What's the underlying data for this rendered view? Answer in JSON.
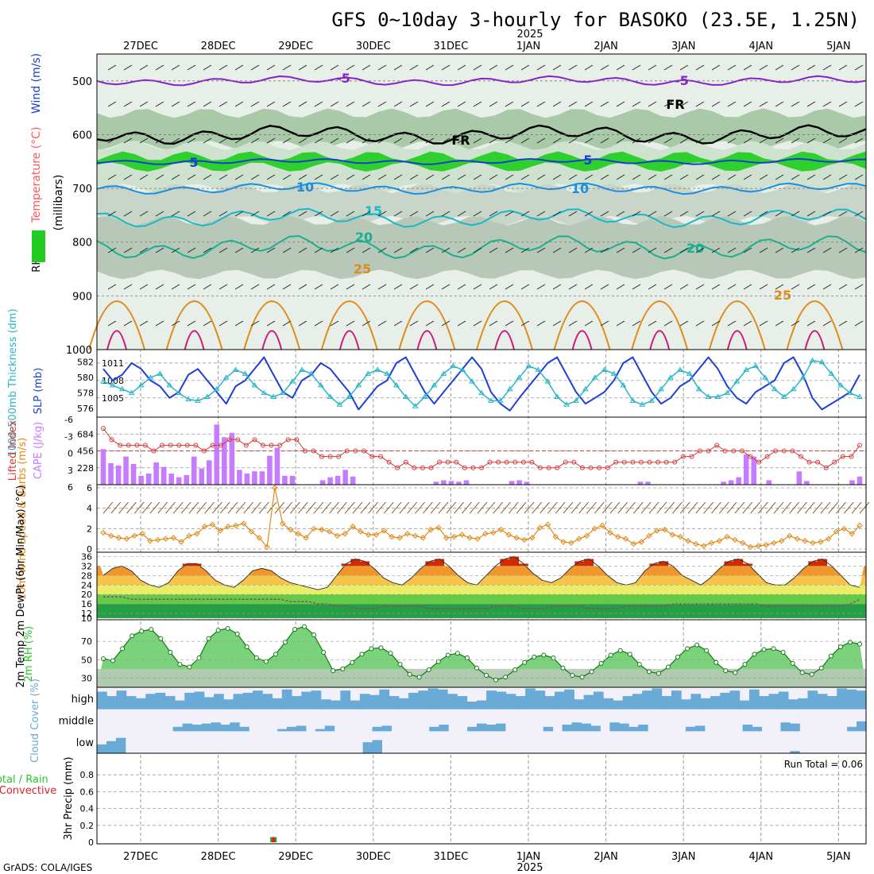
{
  "title": "GFS 0~10day 3-hourly for BASOKO (23.5E, 1.25N)",
  "year_label": "2025",
  "credit": "GrADS: COLA/IGES",
  "days": [
    "27DEC",
    "28DEC",
    "29DEC",
    "30DEC",
    "31DEC",
    "1JAN",
    "2JAN",
    "3JAN",
    "4JAN",
    "5JAN"
  ],
  "colors": {
    "slp": "#1f3fd6",
    "thickness": "#2ab5c8",
    "lifted": "#d93a3a",
    "cape": "#c77cff",
    "wind": "#e08a18",
    "temp_fill": "#f08a10",
    "temp_peak": "#d42a00",
    "rh_green": "#22cc22",
    "cloud": "#6aaad6",
    "cloud_clear": "#f2f0f8",
    "iso_purple": "#8a20c8",
    "iso_blue": "#1a3ecc",
    "iso_sky": "#1a8ee0",
    "iso_teal": "#18b8c8",
    "iso_green": "#18b090",
    "iso_orange": "#e08a18",
    "iso_magenta": "#d01878"
  },
  "chart_data": [
    {
      "type": "heatmap",
      "name": "upper-air cross section",
      "ylabel_parts": [
        "RH (%)",
        "Temperature (°C)",
        "Wind (m/s)",
        "(millibars)"
      ],
      "y_ticks": [
        500,
        600,
        700,
        800,
        900,
        1000
      ],
      "ylim": [
        450,
        1000
      ],
      "isotherm_labels": [
        "-5",
        "FR",
        "5",
        "10",
        "15",
        "20",
        "25"
      ],
      "isotherms": [
        {
          "label": "-5",
          "level": 500,
          "amp": 10,
          "color_key": "iso_purple"
        },
        {
          "label": "FR",
          "level": 600,
          "amp": 20,
          "color_key": "iso_black"
        },
        {
          "label": "5",
          "level": 650,
          "amp": 6,
          "color_key": "iso_blue"
        },
        {
          "label": "10",
          "level": 700,
          "amp": 12,
          "color_key": "iso_sky"
        },
        {
          "label": "15",
          "level": 755,
          "amp": 20,
          "color_key": "iso_teal"
        },
        {
          "label": "20",
          "level": 810,
          "amp": 25,
          "color_key": "iso_green"
        }
      ]
    },
    {
      "type": "line",
      "name": "thickness and slp",
      "ylabel_left": "1000-500mb Thickness (dm)",
      "ylabel_right": "SLP (mb)",
      "thickness_ticks": [
        576,
        578,
        580,
        582
      ],
      "slp_ticks": [
        1005,
        1008,
        1011
      ],
      "slp_ylim": [
        1002.5,
        1012.5
      ],
      "slp": [
        1010,
        1008,
        1009,
        1011,
        1010,
        1008,
        1007,
        1005,
        1006,
        1009,
        1010,
        1008,
        1006,
        1004,
        1007,
        1008,
        1010,
        1012,
        1009,
        1006,
        1005,
        1008,
        1009,
        1011,
        1010,
        1008,
        1006,
        1003,
        1005,
        1007,
        1008,
        1011,
        1012,
        1009,
        1006,
        1004,
        1006,
        1008,
        1010,
        1012,
        1010,
        1006,
        1004,
        1002.8,
        1005,
        1007,
        1009,
        1011,
        1012,
        1009,
        1006,
        1004,
        1005,
        1006,
        1008,
        1011,
        1012,
        1009,
        1006,
        1004,
        1005,
        1007,
        1008,
        1010,
        1012,
        1010,
        1007,
        1005,
        1004,
        1006,
        1007,
        1008,
        1011,
        1012,
        1009,
        1005,
        1003,
        1004,
        1005,
        1006,
        1009
      ],
      "thickness": [
        579.5,
        579,
        578.5,
        578,
        579,
        580,
        580.5,
        579,
        578,
        577.2,
        577,
        577.5,
        578.5,
        580,
        581,
        580.5,
        579,
        578,
        577.5,
        578,
        579.5,
        581,
        580.5,
        579,
        577.5,
        576.5,
        577.5,
        579,
        580.5,
        581,
        580.5,
        579,
        577.5,
        576.3,
        577.5,
        579,
        580.5,
        581.5,
        581,
        579.5,
        578,
        577,
        577,
        578.5,
        580,
        581.5,
        581,
        579.5,
        577.5,
        576.5,
        577,
        578.5,
        580,
        581,
        580.5,
        579,
        577,
        576.5,
        577,
        578.5,
        580,
        581,
        580.5,
        578.5,
        577.5,
        577.5,
        578,
        579.5,
        581,
        581.5,
        580,
        578.5,
        577.5,
        578.5,
        580,
        582.2,
        582,
        580.5,
        579,
        578,
        577.5
      ]
    },
    {
      "type": "bar",
      "name": "cape and lifted index",
      "ylabel_left": "Lifted Index",
      "ylabel_right": "CAPE (J/kg)",
      "li_ticks": [
        "-6",
        "-3",
        "0",
        "3",
        "6"
      ],
      "cape_ticks": [
        684,
        456,
        228
      ],
      "cape_ylim": [
        0,
        912
      ],
      "cape": [
        480,
        290,
        260,
        380,
        280,
        120,
        150,
        300,
        240,
        150,
        100,
        130,
        380,
        220,
        330,
        812,
        640,
        700,
        200,
        150,
        180,
        180,
        390,
        500,
        120,
        120,
        0,
        0,
        0,
        60,
        100,
        120,
        200,
        110,
        0,
        0,
        0,
        0,
        0,
        0,
        0,
        0,
        0,
        0,
        40,
        60,
        50,
        40,
        60,
        0,
        0,
        0,
        0,
        0,
        50,
        60,
        40,
        0,
        0,
        0,
        0,
        0,
        0,
        0,
        0,
        0,
        0,
        0,
        0,
        0,
        0,
        40,
        40,
        0,
        0,
        0,
        0,
        0,
        0,
        0,
        0,
        0,
        40,
        60,
        100,
        410,
        380,
        0,
        60,
        0,
        0,
        0,
        180,
        50,
        0,
        0,
        0,
        0,
        0,
        60,
        110
      ],
      "lifted_index": [
        -4,
        -2,
        -1,
        -1,
        -1,
        -1,
        0,
        -1,
        -1,
        -1,
        -1,
        -1,
        0,
        -1,
        -1,
        -2,
        -2,
        -1,
        -2,
        -1,
        -1,
        -1,
        -2,
        -2,
        0,
        0,
        1,
        1,
        1,
        0,
        0,
        0,
        1,
        1,
        2,
        3,
        2,
        3,
        3,
        3,
        2,
        2,
        2,
        3,
        3,
        3,
        2,
        2,
        2,
        2,
        2,
        2,
        3,
        3,
        3,
        2,
        2,
        3,
        3,
        3,
        3,
        2,
        2,
        2,
        2,
        2,
        2,
        2,
        2,
        1,
        1,
        0,
        0,
        -1,
        0,
        0,
        0,
        1,
        2,
        1,
        0,
        0,
        0,
        1,
        2,
        2,
        3,
        2,
        1,
        1,
        -1
      ]
    },
    {
      "type": "line",
      "name": "10m wind",
      "ylabel": "10m Wind Speed & Barbs (m/s)",
      "y_ticks": [
        0,
        2,
        4,
        6
      ],
      "ylim": [
        0,
        6
      ],
      "values": [
        1.6,
        1.3,
        1.1,
        1.0,
        1.3,
        1.5,
        0.8,
        0.9,
        1.0,
        1.1,
        0.7,
        1.3,
        1.5,
        2.2,
        2.4,
        1.8,
        2.2,
        2.3,
        2.5,
        1.7,
        1.1,
        0.2,
        6.0,
        2.5,
        1.9,
        1.5,
        1.1,
        2.0,
        1.9,
        1.7,
        1.3,
        1.5,
        2.2,
        1.7,
        1.4,
        1.4,
        1.8,
        1.2,
        1.1,
        1.5,
        1.3,
        1.1,
        1.9,
        2.1,
        1.1,
        1.2,
        1.4,
        1.1,
        1.0,
        1.5,
        1.6,
        1.9,
        1.4,
        1.1,
        0.9,
        1.1,
        2.1,
        2.4,
        1.2,
        0.7,
        0.6,
        1.0,
        1.3,
        2.0,
        2.3,
        1.6,
        1.2,
        1.0,
        0.5,
        0.7,
        1.3,
        1.8,
        1.9,
        1.4,
        1.2,
        0.8,
        0.5,
        0.3,
        0.6,
        0.8,
        1.2,
        0.9,
        0.6,
        0.2,
        0.3,
        0.4,
        0.6,
        0.8,
        1.3,
        1.0,
        0.8,
        0.6,
        0.7,
        1.0,
        1.7,
        2.0,
        1.5,
        2.3
      ]
    },
    {
      "type": "area",
      "name": "2m temperature",
      "ylabel": "2m Temp 2m DewPt (6hr Min/Max) (°C)",
      "y_ticks": [
        10,
        12,
        16,
        20,
        24,
        28,
        32,
        36
      ],
      "ylim": [
        10,
        36.5
      ],
      "temp": [
        28,
        31,
        32,
        30,
        26,
        24,
        23,
        25,
        30,
        33,
        33,
        30,
        26,
        24,
        23,
        26,
        30,
        31,
        30,
        27,
        25,
        24,
        23,
        22,
        23,
        28,
        33,
        35,
        34,
        31,
        27,
        25,
        24,
        27,
        31,
        34,
        35,
        32,
        28,
        25,
        24,
        28,
        32,
        35,
        36,
        33,
        29,
        26,
        25,
        27,
        31,
        34,
        35,
        32,
        28,
        25,
        24,
        25,
        30,
        33,
        34,
        32,
        28,
        26,
        24,
        27,
        31,
        34,
        35,
        33,
        29,
        25,
        24,
        24,
        27,
        31,
        34,
        35,
        32,
        28,
        24,
        23
      ],
      "dewpoint": [
        19,
        19,
        19,
        18,
        18,
        18,
        18,
        18,
        18,
        18,
        18,
        18,
        18,
        18,
        18,
        18,
        18,
        18,
        18,
        18,
        17,
        17,
        17,
        16,
        16,
        15,
        15,
        14,
        14,
        14,
        15,
        15,
        15,
        15,
        15,
        14,
        14,
        14,
        14,
        14,
        14,
        14,
        15,
        15,
        15,
        14,
        14,
        14,
        15,
        15,
        15,
        15,
        14,
        14,
        14,
        14,
        15,
        15,
        15,
        15,
        15,
        16,
        16,
        16,
        16,
        16,
        16,
        16,
        16,
        16,
        16,
        15,
        15,
        15,
        15,
        15,
        15,
        15,
        15,
        15,
        16,
        18
      ]
    },
    {
      "type": "area",
      "name": "2m relative humidity",
      "ylabel": "2m RH (%)",
      "y_ticks": [
        30,
        50,
        70
      ],
      "ylim": [
        20,
        90
      ],
      "values": [
        51,
        49,
        62,
        76,
        81,
        83,
        73,
        58,
        45,
        42,
        52,
        73,
        82,
        84,
        78,
        64,
        52,
        48,
        56,
        69,
        83,
        86,
        77,
        58,
        38,
        40,
        47,
        56,
        62,
        63,
        57,
        45,
        34,
        31,
        39,
        48,
        55,
        57,
        52,
        41,
        33,
        28,
        31,
        39,
        47,
        53,
        55,
        52,
        41,
        33,
        31,
        37,
        46,
        55,
        60,
        56,
        45,
        37,
        35,
        42,
        53,
        62,
        66,
        60,
        47,
        38,
        36,
        45,
        56,
        61,
        62,
        58,
        46,
        36,
        34,
        41,
        54,
        64,
        69,
        67
      ]
    },
    {
      "type": "bar",
      "name": "cloud cover",
      "ylabel": "Cloud Cover (%)",
      "layers": [
        "high",
        "middle",
        "low"
      ],
      "high": [
        80,
        60,
        85,
        60,
        50,
        70,
        75,
        60,
        40,
        75,
        80,
        55,
        70,
        45,
        70,
        75,
        85,
        70,
        50,
        90,
        60,
        80,
        85,
        45,
        40,
        85,
        40,
        70,
        65,
        90,
        60,
        50,
        75,
        85,
        95,
        90,
        70,
        60,
        35,
        40,
        85,
        80,
        70,
        60,
        95,
        85,
        60,
        80,
        90,
        45,
        65,
        80,
        50,
        40,
        60,
        70,
        85,
        95,
        60,
        85,
        45,
        70,
        50,
        60,
        75,
        85,
        40,
        90,
        60,
        70,
        80,
        45,
        50,
        85,
        70,
        60,
        95,
        90,
        85
      ],
      "middle": [
        0,
        0,
        0,
        0,
        0,
        0,
        0,
        0,
        20,
        35,
        30,
        35,
        40,
        30,
        40,
        20,
        0,
        0,
        0,
        10,
        20,
        25,
        0,
        10,
        25,
        0,
        0,
        0,
        0,
        20,
        25,
        0,
        0,
        0,
        0,
        20,
        30,
        0,
        0,
        20,
        35,
        30,
        35,
        0,
        0,
        0,
        0,
        20,
        0,
        30,
        40,
        35,
        25,
        0,
        40,
        35,
        20,
        30,
        0,
        0,
        0,
        0,
        20,
        25,
        0,
        0,
        0,
        0,
        30,
        20,
        0,
        0,
        40,
        35,
        0,
        0,
        0,
        0,
        0,
        20,
        45
      ],
      "low": [
        40,
        55,
        70,
        0,
        0,
        0,
        0,
        0,
        0,
        0,
        0,
        0,
        0,
        0,
        0,
        0,
        0,
        0,
        0,
        0,
        0,
        0,
        0,
        0,
        0,
        0,
        0,
        0,
        50,
        60,
        0,
        0,
        0,
        0,
        0,
        0,
        0,
        0,
        0,
        0,
        0,
        0,
        0,
        0,
        0,
        0,
        0,
        0,
        0,
        0,
        0,
        0,
        0,
        0,
        0,
        0,
        0,
        0,
        0,
        0,
        0,
        0,
        0,
        0,
        0,
        0,
        0,
        0,
        0,
        0,
        0,
        0,
        0,
        10,
        0,
        0,
        0,
        0,
        0,
        0,
        0
      ]
    },
    {
      "type": "bar",
      "name": "precipitation",
      "ylabel_parts": [
        "Total / Rain",
        "Convective",
        "3hr Precip (mm)"
      ],
      "y_ticks": [
        "0",
        "0.2",
        "0.4",
        "0.6",
        "0.8"
      ],
      "ylim": [
        0,
        1.0
      ],
      "run_total_label": "Run Total = 0.06",
      "bars": [
        {
          "x_hours": 54,
          "total": 0.06,
          "convective": 0.06
        }
      ]
    }
  ]
}
